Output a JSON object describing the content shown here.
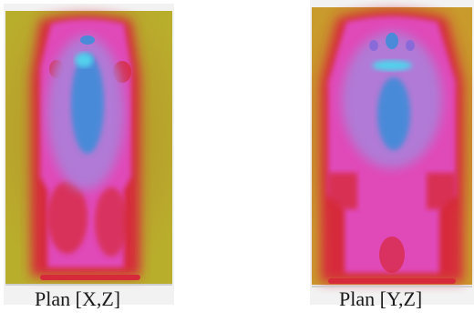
{
  "captions": {
    "xz": "Plan [X,Z]",
    "yz": "Plan [Y,Z]"
  },
  "colors": {
    "background": "#b9ad2c",
    "warm": "#d62a3a",
    "magenta": "#e048b8",
    "violet": "#b07ad6",
    "blue": "#4a8ad8",
    "cyan": "#52d0ec",
    "frame": "#f2f2f2"
  }
}
